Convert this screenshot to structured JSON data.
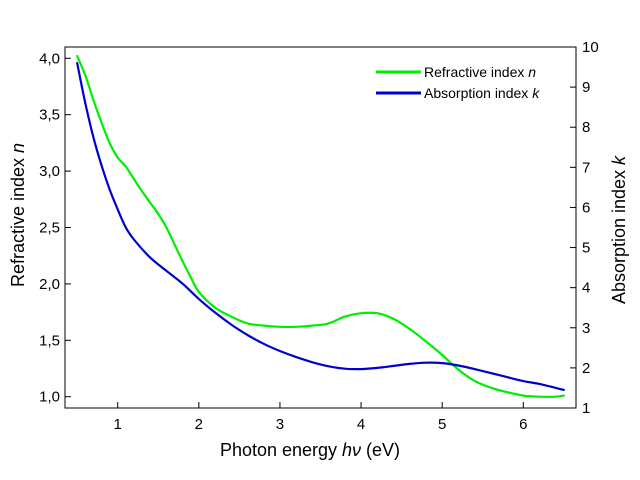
{
  "chart_data": {
    "type": "line",
    "xlabel": {
      "prefix": "Photon energy ",
      "var": "hν",
      "suffix": " (eV)"
    },
    "ylabel_left": {
      "prefix": "Refractive index ",
      "var": "n"
    },
    "ylabel_right": {
      "prefix": "Absorption index  ",
      "var": "k"
    },
    "xlim": [
      0.35,
      6.65
    ],
    "ylim_left": [
      0.9,
      4.1
    ],
    "ylim_right": [
      1,
      10
    ],
    "x_ticks": [
      {
        "value": 1,
        "label": "1"
      },
      {
        "value": 2,
        "label": "2"
      },
      {
        "value": 3,
        "label": "3"
      },
      {
        "value": 4,
        "label": "4"
      },
      {
        "value": 5,
        "label": "5"
      },
      {
        "value": 6,
        "label": "6"
      }
    ],
    "y_left_ticks": [
      {
        "value": 1.0,
        "label": "1,0"
      },
      {
        "value": 1.5,
        "label": "1,5"
      },
      {
        "value": 2.0,
        "label": "2,0"
      },
      {
        "value": 2.5,
        "label": "2,5"
      },
      {
        "value": 3.0,
        "label": "3,0"
      },
      {
        "value": 3.5,
        "label": "3,5"
      },
      {
        "value": 4.0,
        "label": "4,0"
      }
    ],
    "y_right_ticks": [
      {
        "value": 1,
        "label": "1"
      },
      {
        "value": 2,
        "label": "2"
      },
      {
        "value": 3,
        "label": "3"
      },
      {
        "value": 4,
        "label": "4"
      },
      {
        "value": 5,
        "label": "5"
      },
      {
        "value": 6,
        "label": "6"
      },
      {
        "value": 7,
        "label": "7"
      },
      {
        "value": 8,
        "label": "8"
      },
      {
        "value": 9,
        "label": "9"
      },
      {
        "value": 10,
        "label": "10"
      }
    ],
    "grid": false,
    "legend_position": "top-right",
    "series": [
      {
        "name": "Refractive index n",
        "legend_prefix": "Refractive index ",
        "legend_var": "n",
        "axis": "left",
        "color": "#00ee00",
        "x": [
          0.5,
          0.6,
          0.7,
          0.8,
          0.9,
          1.0,
          1.1,
          1.2,
          1.3,
          1.4,
          1.5,
          1.6,
          1.7,
          1.8,
          1.9,
          2.0,
          2.2,
          2.4,
          2.6,
          2.8,
          3.0,
          3.2,
          3.4,
          3.6,
          3.8,
          4.0,
          4.2,
          4.4,
          4.6,
          4.8,
          5.0,
          5.2,
          5.4,
          5.6,
          5.8,
          6.0,
          6.2,
          6.4,
          6.5
        ],
        "values": [
          4.02,
          3.85,
          3.63,
          3.43,
          3.25,
          3.12,
          3.04,
          2.93,
          2.82,
          2.72,
          2.62,
          2.5,
          2.35,
          2.2,
          2.06,
          1.93,
          1.79,
          1.71,
          1.65,
          1.63,
          1.62,
          1.62,
          1.63,
          1.65,
          1.71,
          1.74,
          1.74,
          1.69,
          1.6,
          1.49,
          1.37,
          1.24,
          1.14,
          1.08,
          1.04,
          1.01,
          1.0,
          1.0,
          1.01
        ]
      },
      {
        "name": "Absorption index k",
        "legend_prefix": "Absorption index ",
        "legend_var": "k",
        "axis": "right",
        "color": "#0000cc",
        "x": [
          0.5,
          0.6,
          0.7,
          0.8,
          0.9,
          1.0,
          1.1,
          1.2,
          1.4,
          1.6,
          1.8,
          2.0,
          2.2,
          2.4,
          2.6,
          2.8,
          3.0,
          3.2,
          3.4,
          3.6,
          3.8,
          4.0,
          4.2,
          4.4,
          4.6,
          4.8,
          5.0,
          5.2,
          5.4,
          5.6,
          5.8,
          6.0,
          6.2,
          6.4,
          6.5
        ],
        "values": [
          9.6,
          8.6,
          7.75,
          7.05,
          6.45,
          5.95,
          5.5,
          5.2,
          4.75,
          4.42,
          4.1,
          3.72,
          3.38,
          3.08,
          2.82,
          2.6,
          2.42,
          2.27,
          2.14,
          2.04,
          1.98,
          1.97,
          2.0,
          2.05,
          2.1,
          2.13,
          2.12,
          2.06,
          1.97,
          1.87,
          1.77,
          1.67,
          1.6,
          1.5,
          1.45
        ]
      }
    ]
  }
}
